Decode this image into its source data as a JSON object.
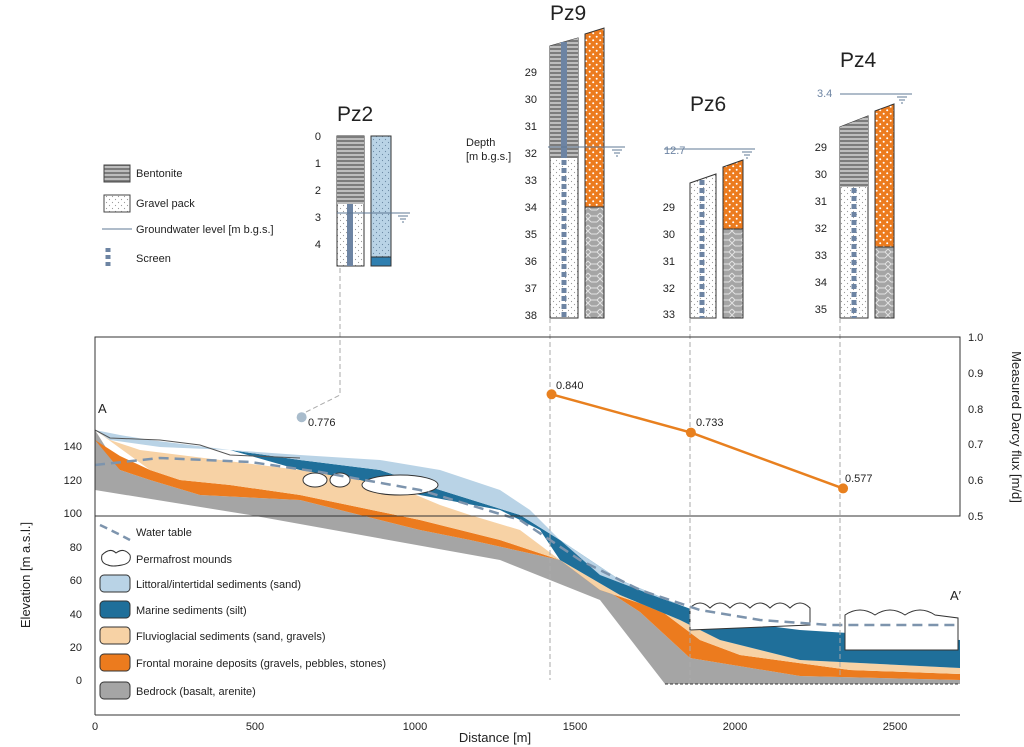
{
  "wells": [
    {
      "name": "Pz2",
      "depth_ticks": [
        "0",
        "1",
        "2",
        "3",
        "4"
      ],
      "gw_level": "",
      "darcy_flux": "0.776"
    },
    {
      "name": "Pz9",
      "depth_ticks": [
        "29",
        "30",
        "31",
        "32",
        "33",
        "34",
        "35",
        "36",
        "37",
        "38"
      ],
      "gw_level": "",
      "darcy_flux": "0.840"
    },
    {
      "name": "Pz6",
      "depth_ticks": [
        "29",
        "30",
        "31",
        "32",
        "33"
      ],
      "gw_level": "12.7",
      "darcy_flux": "0.733"
    },
    {
      "name": "Pz4",
      "depth_ticks": [
        "29",
        "30",
        "31",
        "32",
        "33",
        "34",
        "35"
      ],
      "gw_level": "3.4",
      "darcy_flux": "0.577"
    }
  ],
  "depth_label": [
    "Depth",
    "[m b.g.s.]"
  ],
  "well_legend": {
    "bentonite": "Bentonite",
    "gravel": "Gravel pack",
    "groundwater": "Groundwater level [m b.g.s.]",
    "screen": "Screen"
  },
  "section": {
    "start_label": "A",
    "end_label": "A′",
    "xlabel": "Distance [m]",
    "ylabel": "Elevation [m a.s.l.]",
    "y2label": "Measured Darcy flux [m/d]",
    "xticks": [
      "0",
      "500",
      "1000",
      "1500",
      "2000",
      "2500"
    ],
    "yticks": [
      "0",
      "20",
      "40",
      "60",
      "80",
      "100",
      "120",
      "140"
    ],
    "y2ticks": [
      "0.5",
      "0.6",
      "0.7",
      "0.8",
      "0.9",
      "1.0"
    ]
  },
  "section_legend": {
    "water_table": "Water table",
    "permafrost": "Permafrost mounds",
    "littoral": "Littoral/intertidal sediments (sand)",
    "marine": "Marine sediments (silt)",
    "fluvio": "Fluvioglacial sediments (sand, gravels)",
    "moraine": "Frontal moraine deposits (gravels, pebbles, stones)",
    "bedrock": "Bedrock (basalt, arenite)"
  },
  "colors": {
    "bentonite": "#8e8e8e",
    "gravel": "#ffffff",
    "screen": "#6d84a3",
    "littoral": "#b9d3e6",
    "marine": "#1f6f9a",
    "fluvio": "#f7d2a5",
    "moraine": "#ec7b1e",
    "bedrock": "#a5a5a5",
    "flux": "#e8801f",
    "flux_pz2": "#a9bccc"
  },
  "chart_data": {
    "type": "line",
    "title": "",
    "xlabel": "Distance [m]",
    "ylabel": "Measured Darcy flux [m/d]",
    "ylim": [
      0.5,
      1.0
    ],
    "xlim": [
      0,
      2700
    ],
    "series": [
      {
        "x": [
          1425,
          1860,
          2335
        ],
        "values": [
          0.84,
          0.733,
          0.577
        ]
      }
    ],
    "points": [
      {
        "x": 645,
        "value": 0.776
      }
    ]
  }
}
